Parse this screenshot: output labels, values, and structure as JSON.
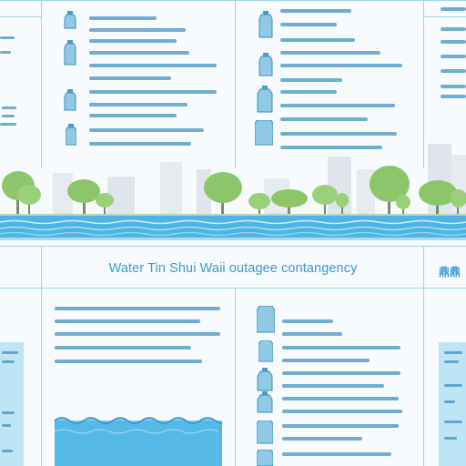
{
  "title": "Water Tin Shui Waii outagee contangency",
  "side_label": "鼎鼎",
  "colors": {
    "background": "#f7fbfd",
    "text_blue": "#3a9bd0",
    "line_blue": "#3a8fbf",
    "water": "#56b8e6",
    "tree_green": "#8cc66a",
    "panel_blue": "#bfe4f3"
  },
  "icons": [
    "bottle-icon",
    "tree-icon",
    "building-icon",
    "wave-icon"
  ]
}
